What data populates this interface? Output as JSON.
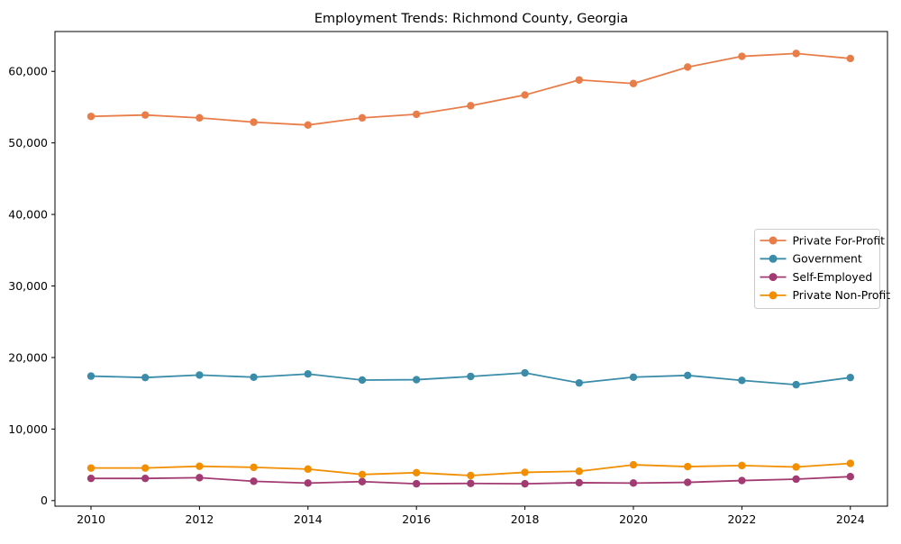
{
  "chart_data": {
    "type": "line",
    "title": "Employment Trends: Richmond County, Georgia",
    "xlabel": "",
    "ylabel": "",
    "grid": false,
    "legend_position": "center right",
    "x": [
      2010,
      2011,
      2012,
      2013,
      2014,
      2015,
      2016,
      2017,
      2018,
      2019,
      2020,
      2021,
      2022,
      2023,
      2024
    ],
    "x_tick_labels": [
      "2010",
      "2012",
      "2014",
      "2016",
      "2018",
      "2020",
      "2022",
      "2024"
    ],
    "x_ticks": [
      2010,
      2012,
      2014,
      2016,
      2018,
      2020,
      2022,
      2024
    ],
    "y_ticks": [
      0,
      10000,
      20000,
      30000,
      40000,
      50000,
      60000
    ],
    "y_tick_labels": [
      "0",
      "10,000",
      "20,000",
      "30,000",
      "40,000",
      "50,000",
      "60,000"
    ],
    "xlim": [
      2009.3,
      2024.7
    ],
    "ylim": [
      -780,
      65570
    ],
    "series": [
      {
        "name": "Private For-Profit",
        "color": "#E87D4A",
        "values": [
          53700,
          53900,
          53500,
          52900,
          52500,
          53500,
          54000,
          55200,
          56700,
          58800,
          58300,
          60600,
          62100,
          62500,
          61800
        ]
      },
      {
        "name": "Government",
        "color": "#3A8CA8",
        "values": [
          17400,
          17200,
          17550,
          17250,
          17700,
          16850,
          16900,
          17350,
          17850,
          16450,
          17250,
          17500,
          16800,
          16200,
          17200
        ]
      },
      {
        "name": "Self-Employed",
        "color": "#A23B72",
        "values": [
          3100,
          3100,
          3200,
          2700,
          2450,
          2650,
          2350,
          2400,
          2350,
          2500,
          2450,
          2550,
          2800,
          3000,
          3350
        ]
      },
      {
        "name": "Private Non-Profit",
        "color": "#F18F01",
        "values": [
          4550,
          4550,
          4800,
          4650,
          4400,
          3650,
          3900,
          3500,
          3950,
          4100,
          5000,
          4750,
          4900,
          4700,
          5200
        ]
      }
    ]
  }
}
